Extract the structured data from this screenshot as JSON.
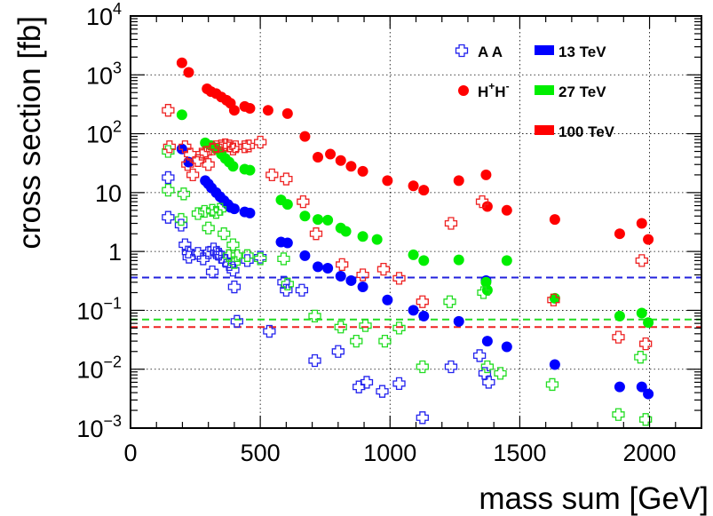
{
  "chart_data": {
    "type": "scatter",
    "title": "",
    "xlabel": "mass sum [GeV]",
    "ylabel": "cross section [fb]",
    "xlim": [
      0,
      2200
    ],
    "ylim": [
      0.001,
      10000
    ],
    "yscale": "log",
    "grid": true,
    "legend_position": "top-right",
    "x_ticks": [
      {
        "value": 0,
        "label": "0"
      },
      {
        "value": 500,
        "label": "500"
      },
      {
        "value": 1000,
        "label": "1000"
      },
      {
        "value": 1500,
        "label": "1500"
      },
      {
        "value": 2000,
        "label": "2000"
      }
    ],
    "y_ticks": [
      {
        "value": 0.001,
        "base": "10",
        "exp": "−3"
      },
      {
        "value": 0.01,
        "base": "10",
        "exp": "−2"
      },
      {
        "value": 0.1,
        "base": "10",
        "exp": "−1"
      },
      {
        "value": 1,
        "base": "1",
        "exp": ""
      },
      {
        "value": 10,
        "base": "10",
        "exp": ""
      },
      {
        "value": 100,
        "base": "10",
        "exp": "2"
      },
      {
        "value": 1000,
        "base": "10",
        "exp": "3"
      },
      {
        "value": 10000,
        "base": "10",
        "exp": "4"
      }
    ],
    "legend": {
      "process": [
        {
          "label": "A A",
          "marker": "cross-open"
        },
        {
          "label_base": "H",
          "label_sup1": "+",
          "label_mid": "H",
          "label_sup2": "-",
          "marker": "circle"
        }
      ],
      "energy": [
        {
          "label": "13 TeV",
          "color": "#0000ff"
        },
        {
          "label": "27 TeV",
          "color": "#00ee00"
        },
        {
          "label": "100 TeV",
          "color": "#ff0000"
        }
      ]
    },
    "reference_lines": [
      {
        "energy": "13 TeV",
        "y": 0.36,
        "color": "#2222dd"
      },
      {
        "energy": "27 TeV",
        "y": 0.07,
        "color": "#22dd22"
      },
      {
        "energy": "100 TeV",
        "y": 0.052,
        "color": "#ee2222"
      }
    ],
    "series": [
      {
        "process": "H+H-",
        "energy": "13 TeV",
        "color": "#0000ff",
        "marker": "circle",
        "x": [
          198,
          224,
          288,
          300,
          312,
          330,
          345,
          360,
          375,
          385,
          400,
          440,
          460,
          580,
          605,
          672,
          722,
          760,
          810,
          850,
          895,
          990,
          1090,
          1130,
          1265,
          1370,
          1375,
          1450,
          1635,
          1885,
          1970,
          1995
        ],
        "y": [
          55,
          33,
          16,
          14,
          12,
          10,
          8.5,
          7.3,
          6.3,
          5.6,
          5.3,
          4.7,
          4.5,
          1.45,
          1.4,
          0.85,
          0.55,
          0.52,
          0.38,
          0.32,
          0.25,
          0.15,
          0.1,
          0.08,
          0.065,
          0.32,
          0.03,
          0.024,
          0.012,
          0.005,
          0.005,
          0.0038
        ]
      },
      {
        "process": "H+H-",
        "energy": "27 TeV",
        "color": "#00ee00",
        "marker": "circle",
        "x": [
          198,
          288,
          310,
          330,
          350,
          365,
          380,
          395,
          440,
          460,
          580,
          605,
          672,
          722,
          760,
          810,
          830,
          895,
          950,
          1090,
          1130,
          1265,
          1370,
          1375,
          1450,
          1635,
          1885,
          1970,
          1995
        ],
        "y": [
          210,
          70,
          63,
          55,
          45,
          38,
          33,
          28,
          25,
          24,
          7.5,
          6.3,
          4,
          3.5,
          3.4,
          2.5,
          2.2,
          1.8,
          1.6,
          0.88,
          0.7,
          0.72,
          0.3,
          0.22,
          0.7,
          0.16,
          0.08,
          0.09,
          0.062
        ]
      },
      {
        "process": "H+H-",
        "energy": "100 TeV",
        "color": "#ff0000",
        "marker": "circle",
        "x": [
          198,
          224,
          295,
          310,
          330,
          350,
          370,
          385,
          400,
          440,
          460,
          530,
          605,
          672,
          722,
          770,
          810,
          850,
          895,
          990,
          1090,
          1130,
          1265,
          1370,
          1375,
          1450,
          1635,
          1885,
          1970,
          1995
        ],
        "y": [
          1600,
          1100,
          580,
          520,
          480,
          420,
          370,
          330,
          250,
          290,
          270,
          250,
          220,
          90,
          40,
          45,
          35,
          28,
          23,
          16,
          13,
          11,
          16,
          20,
          5.8,
          5,
          3.5,
          2,
          3,
          1.6
        ]
      },
      {
        "process": "A A",
        "energy": "13 TeV",
        "color": "#2222ee",
        "marker": "cross-open",
        "x": [
          145,
          145,
          195,
          210,
          225,
          222,
          260,
          280,
          300,
          315,
          320,
          330,
          340,
          350,
          365,
          380,
          395,
          400,
          410,
          450,
          500,
          535,
          590,
          600,
          660,
          710,
          800,
          880,
          910,
          970,
          1035,
          1125,
          1235,
          1345,
          1365,
          1380
        ],
        "y": [
          18,
          3.8,
          2.8,
          1.3,
          0.8,
          0.98,
          0.93,
          0.75,
          0.95,
          0.45,
          1.1,
          0.95,
          0.9,
          0.8,
          0.7,
          0.6,
          0.48,
          0.25,
          0.065,
          0.7,
          0.8,
          0.044,
          0.3,
          0.22,
          0.22,
          0.014,
          0.02,
          0.005,
          0.006,
          0.0042,
          0.0057,
          0.0015,
          0.011,
          0.017,
          0.0085,
          0.006
        ]
      },
      {
        "process": "A A",
        "energy": "27 TeV",
        "color": "#22dd22",
        "marker": "cross-open",
        "x": [
          145,
          145,
          195,
          205,
          260,
          285,
          300,
          315,
          330,
          345,
          360,
          380,
          395,
          400,
          410,
          450,
          500,
          590,
          605,
          710,
          810,
          870,
          905,
          980,
          1035,
          1125,
          1230,
          1360,
          1375,
          1425,
          1625,
          1880,
          1965,
          1985
        ],
        "y": [
          50,
          11,
          3.5,
          9.5,
          4.4,
          4.8,
          2.5,
          5,
          4.6,
          5.2,
          2,
          0.85,
          1.3,
          0.65,
          0.85,
          0.85,
          0.75,
          0.75,
          0.28,
          0.08,
          0.052,
          0.03,
          0.055,
          0.03,
          0.05,
          0.011,
          0.14,
          0.2,
          0.011,
          0.0085,
          0.0055,
          0.0017,
          0.016,
          0.0014
        ]
      },
      {
        "process": "A A",
        "energy": "100 TeV",
        "color": "#ee2222",
        "marker": "cross-open",
        "x": [
          145,
          150,
          210,
          220,
          230,
          240,
          260,
          275,
          290,
          300,
          315,
          330,
          350,
          365,
          380,
          395,
          405,
          440,
          455,
          500,
          545,
          600,
          665,
          715,
          815,
          895,
          975,
          1035,
          1125,
          1235,
          1355,
          1630,
          1880,
          1970,
          1985
        ],
        "y": [
          250,
          60,
          60,
          30,
          45,
          20,
          35,
          45,
          48,
          30,
          55,
          60,
          62,
          65,
          62,
          55,
          60,
          60,
          62,
          72,
          20,
          17,
          7,
          2,
          0.6,
          0.4,
          0.5,
          0.35,
          0.14,
          3,
          7,
          0.15,
          0.035,
          0.7,
          0.027
        ]
      }
    ]
  }
}
